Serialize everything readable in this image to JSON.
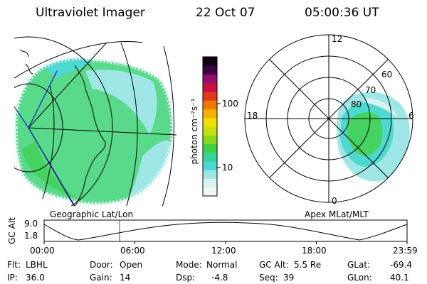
{
  "header": {
    "instrument": "Ultraviolet Imager",
    "date": "22 Oct 07",
    "time": "05:00:36 UT"
  },
  "left_panel": {
    "label": "Geographic Lat/Lon"
  },
  "right_panel": {
    "label": "Apex MLat/MLT",
    "mlt_labels": [
      "12",
      "18",
      "6",
      "0"
    ],
    "mlat_labels": [
      "60",
      "70",
      "80"
    ]
  },
  "colorbar": {
    "unit_label": "photon cm⁻²s⁻¹",
    "ticks": [
      "100",
      "10"
    ],
    "colors": [
      "#f4f4f4",
      "#d9f2f2",
      "#9fe6e6",
      "#4dd9cf",
      "#35d49a",
      "#44d044",
      "#88d820",
      "#c8e010",
      "#f0e000",
      "#f8b000",
      "#f07800",
      "#e03818",
      "#c81040",
      "#901070",
      "#400040",
      "#100010"
    ]
  },
  "timeline": {
    "ylabel": "GC Alt",
    "y_ticks": [
      "9.0",
      "1.8"
    ],
    "x_ticks": [
      "00:00",
      "06:00",
      "12:00",
      "18:00",
      "23:59"
    ],
    "current_time_fraction": 0.208
  },
  "info": {
    "row1": [
      {
        "key": "Flt:",
        "value": "LBHL"
      },
      {
        "key": "Door:",
        "value": "Open"
      },
      {
        "key": "Mode:",
        "value": "Normal"
      },
      {
        "key": "GC Alt:",
        "value": "5.5 Re"
      },
      {
        "key": "GLat:",
        "value": "-69.4"
      }
    ],
    "row2": [
      {
        "key": "IP:",
        "value": "36.0"
      },
      {
        "key": "Gain:",
        "value": "14"
      },
      {
        "key": "Dsp:",
        "value": "-4.8"
      },
      {
        "key": "Seq:",
        "value": "39"
      },
      {
        "key": "GLon:",
        "value": "40.1"
      }
    ]
  }
}
